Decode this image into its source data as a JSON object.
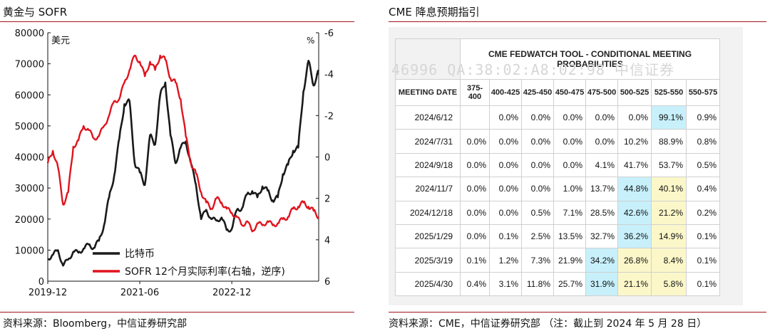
{
  "left": {
    "title": "黄金与 SOFR",
    "source": "资料来源：Bloomberg，中信证券研究部",
    "chart_data": {
      "type": "line",
      "left_unit": "美元",
      "right_unit": "%",
      "y_left_range": [
        0,
        80000
      ],
      "y_left_ticks": [
        "80000",
        "70000",
        "60000",
        "50000",
        "40000",
        "30000",
        "20000",
        "10000",
        "0"
      ],
      "y_right_range": [
        -6,
        6
      ],
      "y_right_reversed": true,
      "y_right_ticks": [
        "-6",
        "-4",
        "-2",
        "0",
        "2",
        "4",
        "6"
      ],
      "x_tick_labels": [
        "2019-12",
        "2021-06",
        "2022-12"
      ],
      "x_tick_dates": [
        "2019-12",
        "2021-06",
        "2022-12"
      ],
      "x_range": [
        "2019-12",
        "2024-05"
      ],
      "legend_position": "bottom-center",
      "series": [
        {
          "name": "比特币",
          "axis": "left",
          "color": "#1a1a1a",
          "points": [
            [
              "2019-12",
              7200
            ],
            [
              "2020-01",
              8500
            ],
            [
              "2020-02",
              10000
            ],
            [
              "2020-03",
              5000
            ],
            [
              "2020-04",
              7000
            ],
            [
              "2020-05",
              9500
            ],
            [
              "2020-06",
              9200
            ],
            [
              "2020-07",
              10500
            ],
            [
              "2020-08",
              11800
            ],
            [
              "2020-09",
              10700
            ],
            [
              "2020-10",
              13000
            ],
            [
              "2020-11",
              18000
            ],
            [
              "2020-12",
              27000
            ],
            [
              "2021-01",
              34000
            ],
            [
              "2021-02",
              46000
            ],
            [
              "2021-03",
              57000
            ],
            [
              "2021-04",
              58000
            ],
            [
              "2021-05",
              38000
            ],
            [
              "2021-06",
              35000
            ],
            [
              "2021-07",
              31000
            ],
            [
              "2021-08",
              47000
            ],
            [
              "2021-09",
              44000
            ],
            [
              "2021-10",
              60000
            ],
            [
              "2021-11",
              64000
            ],
            [
              "2021-12",
              47000
            ],
            [
              "2022-01",
              38000
            ],
            [
              "2022-02",
              43000
            ],
            [
              "2022-03",
              45000
            ],
            [
              "2022-04",
              38000
            ],
            [
              "2022-05",
              31000
            ],
            [
              "2022-06",
              20000
            ],
            [
              "2022-07",
              23000
            ],
            [
              "2022-08",
              20000
            ],
            [
              "2022-09",
              19500
            ],
            [
              "2022-10",
              20500
            ],
            [
              "2022-11",
              16500
            ],
            [
              "2022-12",
              16800
            ],
            [
              "2023-01",
              23000
            ],
            [
              "2023-02",
              23500
            ],
            [
              "2023-03",
              28000
            ],
            [
              "2023-04",
              29000
            ],
            [
              "2023-05",
              27000
            ],
            [
              "2023-06",
              30500
            ],
            [
              "2023-07",
              29200
            ],
            [
              "2023-08",
              26000
            ],
            [
              "2023-09",
              27000
            ],
            [
              "2023-10",
              34500
            ],
            [
              "2023-11",
              37500
            ],
            [
              "2023-12",
              42000
            ],
            [
              "2024-01",
              43000
            ],
            [
              "2024-02",
              61000
            ],
            [
              "2024-03",
              71000
            ],
            [
              "2024-04",
              63000
            ],
            [
              "2024-05",
              68000
            ]
          ]
        },
        {
          "name": "SOFR 12个月实际利率(右轴，逆序)",
          "axis": "right",
          "color": "#e0141e",
          "points": [
            [
              "2019-12",
              0.3
            ],
            [
              "2020-01",
              -0.3
            ],
            [
              "2020-02",
              0.5
            ],
            [
              "2020-03",
              2.3
            ],
            [
              "2020-04",
              1.7
            ],
            [
              "2020-05",
              -0.5
            ],
            [
              "2020-06",
              -0.8
            ],
            [
              "2020-07",
              -1.5
            ],
            [
              "2020-08",
              -1.3
            ],
            [
              "2020-09",
              -0.9
            ],
            [
              "2020-10",
              -1.0
            ],
            [
              "2020-11",
              -1.5
            ],
            [
              "2020-12",
              -2.0
            ],
            [
              "2021-01",
              -2.7
            ],
            [
              "2021-02",
              -2.8
            ],
            [
              "2021-03",
              -3.6
            ],
            [
              "2021-04",
              -4.2
            ],
            [
              "2021-05",
              -4.9
            ],
            [
              "2021-06",
              -4.6
            ],
            [
              "2021-07",
              -3.9
            ],
            [
              "2021-08",
              -4.6
            ],
            [
              "2021-09",
              -4.2
            ],
            [
              "2021-10",
              -4.9
            ],
            [
              "2021-11",
              -4.7
            ],
            [
              "2021-12",
              -3.8
            ],
            [
              "2022-01",
              -3.6
            ],
            [
              "2022-02",
              -2.8
            ],
            [
              "2022-03",
              -1.0
            ],
            [
              "2022-04",
              0.3
            ],
            [
              "2022-05",
              0.8
            ],
            [
              "2022-06",
              1.7
            ],
            [
              "2022-07",
              2.2
            ],
            [
              "2022-08",
              2.5
            ],
            [
              "2022-09",
              2.0
            ],
            [
              "2022-10",
              2.2
            ],
            [
              "2022-11",
              2.5
            ],
            [
              "2022-12",
              2.7
            ],
            [
              "2023-01",
              2.9
            ],
            [
              "2023-02",
              3.3
            ],
            [
              "2023-03",
              3.1
            ],
            [
              "2023-04",
              3.6
            ],
            [
              "2023-05",
              3.2
            ],
            [
              "2023-06",
              3.3
            ],
            [
              "2023-07",
              3.1
            ],
            [
              "2023-08",
              3.3
            ],
            [
              "2023-09",
              3.2
            ],
            [
              "2023-10",
              3.0
            ],
            [
              "2023-11",
              2.9
            ],
            [
              "2023-12",
              2.5
            ],
            [
              "2024-01",
              2.4
            ],
            [
              "2024-02",
              2.2
            ],
            [
              "2024-03",
              2.4
            ],
            [
              "2024-04",
              2.6
            ],
            [
              "2024-05",
              2.9
            ]
          ]
        }
      ]
    }
  },
  "right": {
    "title": "CME 降息预期指引",
    "source": "资料来源：CME，中信证券研究部 （注：截止到 2024 年 5 月 28 日）",
    "watermark": "46996  QA:38:02:A8:02:98  中信证券",
    "table": {
      "title": "CME FEDWATCH TOOL - CONDITIONAL MEETING PROBABILITIES",
      "header": [
        "MEETING DATE",
        "375-400",
        "400-425",
        "425-450",
        "450-475",
        "475-500",
        "500-525",
        "525-550",
        "550-575"
      ],
      "rows": [
        [
          "2024/6/12",
          "",
          "0.0%",
          "0.0%",
          "0.0%",
          "0.0%",
          "0.0%",
          "99.1%",
          "0.9%"
        ],
        [
          "2024/7/31",
          "0.0%",
          "0.0%",
          "0.0%",
          "0.0%",
          "0.0%",
          "10.2%",
          "88.9%",
          "0.8%"
        ],
        [
          "2024/9/18",
          "0.0%",
          "0.0%",
          "0.0%",
          "0.0%",
          "4.1%",
          "41.7%",
          "53.7%",
          "0.5%"
        ],
        [
          "2024/11/7",
          "0.0%",
          "0.0%",
          "0.0%",
          "1.0%",
          "13.7%",
          "44.8%",
          "40.1%",
          "0.4%"
        ],
        [
          "2024/12/18",
          "0.0%",
          "0.0%",
          "0.5%",
          "7.1%",
          "28.5%",
          "42.6%",
          "21.2%",
          "0.2%"
        ],
        [
          "2025/1/29",
          "0.0%",
          "0.1%",
          "2.5%",
          "13.5%",
          "32.7%",
          "36.2%",
          "14.9%",
          "0.1%"
        ],
        [
          "2025/3/19",
          "0.1%",
          "1.2%",
          "7.3%",
          "21.9%",
          "34.2%",
          "26.8%",
          "8.4%",
          "0.1%"
        ],
        [
          "2025/4/30",
          "0.4%",
          "3.1%",
          "11.8%",
          "25.7%",
          "31.9%",
          "21.1%",
          "5.8%",
          "0.1%"
        ]
      ],
      "highlight_blue": [
        [
          0,
          7
        ],
        [
          3,
          6
        ],
        [
          4,
          6
        ],
        [
          5,
          6
        ],
        [
          6,
          5
        ],
        [
          7,
          5
        ]
      ],
      "highlight_yellow": [
        [
          3,
          7
        ],
        [
          4,
          7
        ],
        [
          5,
          7
        ],
        [
          6,
          6
        ],
        [
          6,
          7
        ],
        [
          7,
          6
        ],
        [
          7,
          7
        ]
      ],
      "colors": {
        "blue": "#c7f0fb",
        "yellow": "#fbf7c9"
      }
    }
  }
}
